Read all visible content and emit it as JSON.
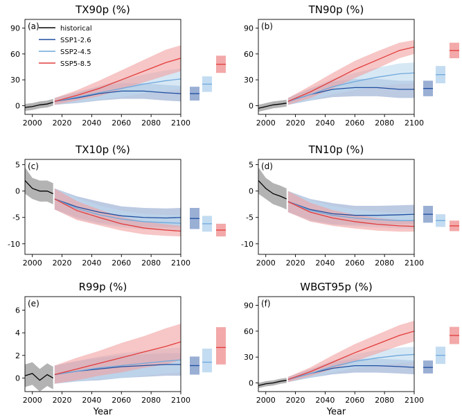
{
  "colors": {
    "historical": "#000000",
    "ssp126": "#1f4ea0",
    "ssp245": "#6fa8dc",
    "ssp585": "#e23b3b",
    "band_historical": "#808080",
    "band_ssp126": "#8fa6cf",
    "band_ssp245": "#bcd8ef",
    "band_ssp585": "#f2a0a0"
  },
  "legend": {
    "historical": "historical",
    "ssp126": "SSP1-2.6",
    "ssp245": "SSP2-4.5",
    "ssp585": "SSP5-8.5"
  },
  "chart_data": [
    {
      "type": "line",
      "label": "(a)",
      "title": "TX90p (%)",
      "xlabel": "",
      "xlim": [
        1995,
        2100
      ],
      "ylim": [
        -10,
        100
      ],
      "xticks": [
        2000,
        2020,
        2040,
        2060,
        2080,
        2100
      ],
      "yticks": [
        0,
        30,
        60,
        90
      ],
      "series": [
        {
          "name": "historical",
          "key": "historical",
          "x": [
            1995,
            2000,
            2005,
            2010,
            2014
          ],
          "y": [
            -2,
            -1,
            1,
            2,
            4
          ],
          "spread": [
            4,
            4,
            4,
            4,
            4
          ]
        },
        {
          "name": "SSP1-2.6",
          "key": "ssp126",
          "x": [
            2015,
            2030,
            2045,
            2060,
            2075,
            2090,
            2100
          ],
          "y": [
            5,
            9,
            14,
            17,
            17,
            15,
            14
          ],
          "spread": [
            4,
            6,
            8,
            9,
            9,
            9,
            9
          ]
        },
        {
          "name": "SSP2-4.5",
          "key": "ssp245",
          "x": [
            2015,
            2030,
            2045,
            2060,
            2075,
            2090,
            2100
          ],
          "y": [
            5,
            10,
            15,
            20,
            25,
            29,
            31
          ],
          "spread": [
            4,
            6,
            8,
            10,
            11,
            12,
            12
          ]
        },
        {
          "name": "SSP5-8.5",
          "key": "ssp585",
          "x": [
            2015,
            2030,
            2045,
            2060,
            2075,
            2090,
            2100
          ],
          "y": [
            5,
            12,
            20,
            30,
            40,
            50,
            55
          ],
          "spread": [
            4,
            6,
            9,
            11,
            13,
            15,
            15
          ]
        }
      ],
      "ranges": [
        {
          "key": "ssp126",
          "mid": 14,
          "low": 6,
          "high": 22
        },
        {
          "key": "ssp245",
          "mid": 25,
          "low": 16,
          "high": 34
        },
        {
          "key": "ssp585",
          "mid": 48,
          "low": 38,
          "high": 58
        }
      ]
    },
    {
      "type": "line",
      "label": "(b)",
      "title": "TN90p (%)",
      "xlabel": "",
      "xlim": [
        1995,
        2100
      ],
      "ylim": [
        -10,
        100
      ],
      "xticks": [
        2000,
        2020,
        2040,
        2060,
        2080,
        2100
      ],
      "yticks": [
        0,
        30,
        60,
        90
      ],
      "series": [
        {
          "name": "historical",
          "key": "historical",
          "x": [
            1995,
            2000,
            2005,
            2010,
            2014
          ],
          "y": [
            -3,
            -1,
            1,
            2,
            3
          ],
          "spread": [
            4,
            4,
            4,
            4,
            4
          ]
        },
        {
          "name": "SSP1-2.6",
          "key": "ssp126",
          "x": [
            2015,
            2030,
            2045,
            2060,
            2075,
            2090,
            2100
          ],
          "y": [
            5,
            13,
            19,
            21,
            21,
            19,
            19
          ],
          "spread": [
            4,
            7,
            9,
            10,
            10,
            10,
            10
          ]
        },
        {
          "name": "SSP2-4.5",
          "key": "ssp245",
          "x": [
            2015,
            2030,
            2045,
            2060,
            2075,
            2090,
            2100
          ],
          "y": [
            5,
            13,
            22,
            28,
            33,
            37,
            38
          ],
          "spread": [
            4,
            7,
            9,
            10,
            11,
            12,
            12
          ]
        },
        {
          "name": "SSP5-8.5",
          "key": "ssp585",
          "x": [
            2015,
            2030,
            2045,
            2060,
            2075,
            2090,
            2100
          ],
          "y": [
            5,
            16,
            29,
            42,
            53,
            64,
            68
          ],
          "spread": [
            4,
            7,
            9,
            10,
            10,
            9,
            8
          ]
        }
      ],
      "ranges": [
        {
          "key": "ssp126",
          "mid": 20,
          "low": 11,
          "high": 29
        },
        {
          "key": "ssp245",
          "mid": 36,
          "low": 26,
          "high": 46
        },
        {
          "key": "ssp585",
          "mid": 64,
          "low": 55,
          "high": 73
        }
      ]
    },
    {
      "type": "line",
      "label": "(c)",
      "title": "TX10p (%)",
      "xlabel": "",
      "xlim": [
        1995,
        2100
      ],
      "ylim": [
        -12,
        6
      ],
      "xticks": [
        2000,
        2020,
        2040,
        2060,
        2080,
        2100
      ],
      "yticks": [
        -10,
        -5,
        0,
        5
      ],
      "series": [
        {
          "name": "historical",
          "key": "historical",
          "x": [
            1995,
            2000,
            2005,
            2010,
            2014
          ],
          "y": [
            2,
            0.5,
            0,
            0,
            -0.5
          ],
          "spread": [
            2.5,
            2,
            2,
            2,
            2
          ]
        },
        {
          "name": "SSP1-2.6",
          "key": "ssp126",
          "x": [
            2015,
            2030,
            2045,
            2060,
            2075,
            2090,
            2100
          ],
          "y": [
            -1.5,
            -3,
            -4,
            -4.7,
            -5,
            -5.1,
            -5
          ],
          "spread": [
            2,
            2,
            2,
            1.8,
            1.8,
            1.8,
            1.8
          ]
        },
        {
          "name": "SSP2-4.5",
          "key": "ssp245",
          "x": [
            2015,
            2030,
            2045,
            2060,
            2075,
            2090,
            2100
          ],
          "y": [
            -1.5,
            -3.3,
            -4.5,
            -5.3,
            -5.8,
            -6,
            -6.1
          ],
          "spread": [
            2,
            2,
            1.8,
            1.6,
            1.5,
            1.5,
            1.5
          ]
        },
        {
          "name": "SSP5-8.5",
          "key": "ssp585",
          "x": [
            2015,
            2030,
            2045,
            2060,
            2075,
            2090,
            2100
          ],
          "y": [
            -1.5,
            -3.7,
            -5,
            -6.2,
            -7,
            -7.4,
            -7.6
          ],
          "spread": [
            2,
            1.8,
            1.5,
            1.3,
            1.2,
            1.1,
            1
          ]
        }
      ],
      "ranges": [
        {
          "key": "ssp126",
          "mid": -5.2,
          "low": -7.2,
          "high": -3.2
        },
        {
          "key": "ssp245",
          "mid": -6.2,
          "low": -7.7,
          "high": -4.7
        },
        {
          "key": "ssp585",
          "mid": -7.4,
          "low": -8.6,
          "high": -6.2
        }
      ]
    },
    {
      "type": "line",
      "label": "(d)",
      "title": "TN10p (%)",
      "xlabel": "",
      "xlim": [
        1995,
        2100
      ],
      "ylim": [
        -12,
        6
      ],
      "xticks": [
        2000,
        2020,
        2040,
        2060,
        2080,
        2100
      ],
      "yticks": [
        -10,
        -5,
        0,
        5
      ],
      "series": [
        {
          "name": "historical",
          "key": "historical",
          "x": [
            1995,
            2000,
            2005,
            2010,
            2014
          ],
          "y": [
            2,
            0.5,
            -0.5,
            -1,
            -1.5
          ],
          "spread": [
            2.5,
            2,
            2,
            2,
            2
          ]
        },
        {
          "name": "SSP1-2.6",
          "key": "ssp126",
          "x": [
            2015,
            2030,
            2045,
            2060,
            2075,
            2090,
            2100
          ],
          "y": [
            -2,
            -3.5,
            -4.3,
            -4.6,
            -4.6,
            -4.5,
            -4.4
          ],
          "spread": [
            2,
            2,
            2,
            1.8,
            1.8,
            1.8,
            1.8
          ]
        },
        {
          "name": "SSP2-4.5",
          "key": "ssp245",
          "x": [
            2015,
            2030,
            2045,
            2060,
            2075,
            2090,
            2100
          ],
          "y": [
            -2,
            -3.7,
            -4.6,
            -5.1,
            -5.4,
            -5.6,
            -5.6
          ],
          "spread": [
            2,
            2,
            1.8,
            1.6,
            1.5,
            1.5,
            1.5
          ]
        },
        {
          "name": "SSP5-8.5",
          "key": "ssp585",
          "x": [
            2015,
            2030,
            2045,
            2060,
            2075,
            2090,
            2100
          ],
          "y": [
            -2,
            -4,
            -5.1,
            -5.8,
            -6.3,
            -6.6,
            -6.7
          ],
          "spread": [
            2,
            1.8,
            1.5,
            1.3,
            1.2,
            1.1,
            1
          ]
        }
      ],
      "ranges": [
        {
          "key": "ssp126",
          "mid": -4.4,
          "low": -6,
          "high": -2.8
        },
        {
          "key": "ssp245",
          "mid": -5.6,
          "low": -6.8,
          "high": -4.4
        },
        {
          "key": "ssp585",
          "mid": -6.6,
          "low": -7.6,
          "high": -5.6
        }
      ]
    },
    {
      "type": "line",
      "label": "(e)",
      "title": "R99p (%)",
      "xlabel": "Year",
      "xlim": [
        1995,
        2100
      ],
      "ylim": [
        -1.2,
        7.2
      ],
      "xticks": [
        2000,
        2020,
        2040,
        2060,
        2080,
        2100
      ],
      "yticks": [
        0,
        2,
        4,
        6
      ],
      "series": [
        {
          "name": "historical",
          "key": "historical",
          "x": [
            1995,
            2000,
            2005,
            2010,
            2014
          ],
          "y": [
            0.2,
            0.4,
            -0.2,
            0.3,
            0
          ],
          "spread": [
            1,
            1,
            1,
            1,
            1
          ]
        },
        {
          "name": "SSP1-2.6",
          "key": "ssp126",
          "x": [
            2015,
            2030,
            2045,
            2060,
            2075,
            2090,
            2100
          ],
          "y": [
            0.3,
            0.6,
            0.8,
            1,
            1.1,
            1.2,
            1.2
          ],
          "spread": [
            0.8,
            0.9,
            1,
            1,
            1,
            1,
            1
          ]
        },
        {
          "name": "SSP2-4.5",
          "key": "ssp245",
          "x": [
            2015,
            2030,
            2045,
            2060,
            2075,
            2090,
            2100
          ],
          "y": [
            0.3,
            0.6,
            0.9,
            1.1,
            1.3,
            1.5,
            1.6
          ],
          "spread": [
            0.8,
            0.9,
            1,
            1.1,
            1.1,
            1.1,
            1.1
          ]
        },
        {
          "name": "SSP5-8.5",
          "key": "ssp585",
          "x": [
            2015,
            2030,
            2045,
            2060,
            2075,
            2090,
            2100
          ],
          "y": [
            0.3,
            0.8,
            1.3,
            1.8,
            2.3,
            2.8,
            3.2
          ],
          "spread": [
            0.8,
            1,
            1.1,
            1.3,
            1.4,
            1.6,
            1.6
          ]
        }
      ],
      "ranges": [
        {
          "key": "ssp126",
          "mid": 1.1,
          "low": 0.3,
          "high": 1.9
        },
        {
          "key": "ssp245",
          "mid": 1.4,
          "low": 0.5,
          "high": 2.6
        },
        {
          "key": "ssp585",
          "mid": 2.7,
          "low": 1.2,
          "high": 4.5
        }
      ]
    },
    {
      "type": "line",
      "label": "(f)",
      "title": "WBGT95p (%)",
      "xlabel": "Year",
      "xlim": [
        1995,
        2100
      ],
      "ylim": [
        -10,
        100
      ],
      "xticks": [
        2000,
        2020,
        2040,
        2060,
        2080,
        2100
      ],
      "yticks": [
        0,
        30,
        60,
        90
      ],
      "series": [
        {
          "name": "historical",
          "key": "historical",
          "x": [
            1995,
            2000,
            2005,
            2010,
            2014
          ],
          "y": [
            -3,
            -1,
            0,
            2,
            3
          ],
          "spread": [
            3,
            3,
            3,
            3,
            3
          ]
        },
        {
          "name": "SSP1-2.6",
          "key": "ssp126",
          "x": [
            2015,
            2030,
            2045,
            2060,
            2075,
            2090,
            2100
          ],
          "y": [
            4,
            11,
            17,
            20,
            20,
            19,
            18
          ],
          "spread": [
            3,
            5,
            7,
            8,
            8,
            8,
            8
          ]
        },
        {
          "name": "SSP2-4.5",
          "key": "ssp245",
          "x": [
            2015,
            2030,
            2045,
            2060,
            2075,
            2090,
            2100
          ],
          "y": [
            4,
            11,
            19,
            25,
            29,
            32,
            33
          ],
          "spread": [
            3,
            5,
            7,
            8,
            9,
            9,
            9
          ]
        },
        {
          "name": "SSP5-8.5",
          "key": "ssp585",
          "x": [
            2015,
            2030,
            2045,
            2060,
            2075,
            2090,
            2100
          ],
          "y": [
            4,
            13,
            24,
            35,
            45,
            55,
            60
          ],
          "spread": [
            3,
            5,
            8,
            10,
            11,
            12,
            12
          ]
        }
      ],
      "ranges": [
        {
          "key": "ssp126",
          "mid": 18,
          "low": 11,
          "high": 26
        },
        {
          "key": "ssp245",
          "mid": 32,
          "low": 22,
          "high": 42
        },
        {
          "key": "ssp585",
          "mid": 55,
          "low": 45,
          "high": 65
        }
      ]
    }
  ]
}
